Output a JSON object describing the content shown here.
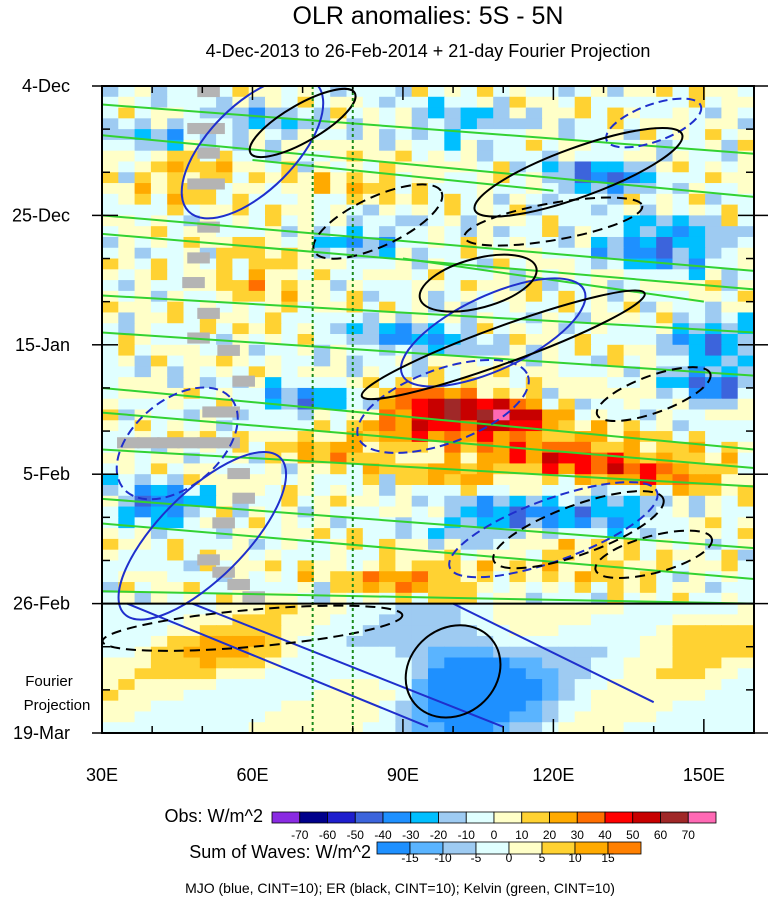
{
  "chart_data": {
    "type": "heatmap",
    "title": "OLR anomalies: 5S - 5N",
    "subtitle": "4-Dec-2013 to 26-Feb-2014 + 21-day Fourier Projection",
    "x_ticks": [
      {
        "value": 30,
        "label": "30E"
      },
      {
        "value": 60,
        "label": "60E"
      },
      {
        "value": 90,
        "label": "90E"
      },
      {
        "value": 120,
        "label": "120E"
      },
      {
        "value": 150,
        "label": "150E"
      }
    ],
    "xlim": [
      30,
      160
    ],
    "y_ticks": [
      {
        "value": 0,
        "label": "4-Dec"
      },
      {
        "value": 21,
        "label": "25-Dec"
      },
      {
        "value": 42,
        "label": "15-Jan"
      },
      {
        "value": 63,
        "label": "5-Feb"
      },
      {
        "value": 84,
        "label": "26-Feb"
      },
      {
        "value": 105,
        "label": "19-Mar"
      }
    ],
    "ylim_days": [
      0,
      105
    ],
    "y_reversed": true,
    "forecast_start_day": 84,
    "forecast_label": [
      "Fourier",
      "Projection"
    ],
    "vertical_markers": [
      {
        "x": 72,
        "color": "#1a8a1a"
      },
      {
        "x": 80,
        "color": "#1a8a1a"
      }
    ],
    "obs_colorbar": {
      "label": "Obs: W/m^2",
      "levels": [
        "-70",
        "-60",
        "-50",
        "-40",
        "-30",
        "-20",
        "-10",
        "0",
        "10",
        "20",
        "30",
        "40",
        "50",
        "60",
        "70"
      ],
      "colors": [
        "#8a2be2",
        "#00008b",
        "#1e1ecd",
        "#3c64dc",
        "#1e90ff",
        "#00bfff",
        "#9ecbf2",
        "#e0ffff",
        "#ffffc8",
        "#ffd232",
        "#ffaa00",
        "#ff6e00",
        "#ff0000",
        "#c80000",
        "#a02828",
        "#ff69b4"
      ]
    },
    "waves_colorbar": {
      "label": "Sum of Waves: W/m^2",
      "levels": [
        "-15",
        "-10",
        "-5",
        "0",
        "5",
        "10",
        "15"
      ],
      "colors": [
        "#1e90ff",
        "#5ab4ff",
        "#9ecbf2",
        "#e0ffff",
        "#ffffc8",
        "#ffd232",
        "#ffaa00",
        "#ff8000"
      ]
    },
    "contours": [
      {
        "name": "MJO",
        "color": "#1f2fcc",
        "cint": 10
      },
      {
        "name": "ER",
        "color": "#000000",
        "cint": 10
      },
      {
        "name": "Kelvin",
        "color": "#32d232",
        "cint": 10
      }
    ],
    "footnote": "MJO (blue, CINT=10); ER (black, CINT=10); Kelvin (green, CINT=10)",
    "missing_color": "#b4b4b4"
  }
}
